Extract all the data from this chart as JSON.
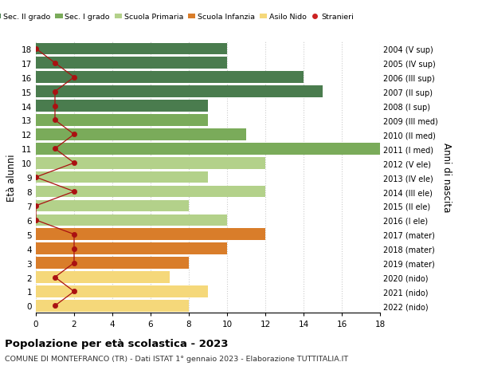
{
  "ages": [
    18,
    17,
    16,
    15,
    14,
    13,
    12,
    11,
    10,
    9,
    8,
    7,
    6,
    5,
    4,
    3,
    2,
    1,
    0
  ],
  "right_labels": [
    "2004 (V sup)",
    "2005 (IV sup)",
    "2006 (III sup)",
    "2007 (II sup)",
    "2008 (I sup)",
    "2009 (III med)",
    "2010 (II med)",
    "2011 (I med)",
    "2012 (V ele)",
    "2013 (IV ele)",
    "2014 (III ele)",
    "2015 (II ele)",
    "2016 (I ele)",
    "2017 (mater)",
    "2018 (mater)",
    "2019 (mater)",
    "2020 (nido)",
    "2021 (nido)",
    "2022 (nido)"
  ],
  "bar_values": [
    10,
    10,
    14,
    15,
    9,
    9,
    11,
    18,
    12,
    9,
    12,
    8,
    10,
    12,
    10,
    8,
    7,
    9,
    8
  ],
  "stranieri": [
    0,
    1,
    2,
    1,
    1,
    1,
    2,
    1,
    2,
    0,
    2,
    0,
    0,
    2,
    2,
    2,
    1,
    2,
    1
  ],
  "bar_colors": [
    "#4a7c4e",
    "#4a7c4e",
    "#4a7c4e",
    "#4a7c4e",
    "#4a7c4e",
    "#7aab5a",
    "#7aab5a",
    "#7aab5a",
    "#b3d18a",
    "#b3d18a",
    "#b3d18a",
    "#b3d18a",
    "#b3d18a",
    "#d97d2a",
    "#d97d2a",
    "#d97d2a",
    "#f5d87a",
    "#f5d87a",
    "#f5d87a"
  ],
  "legend_labels": [
    "Sec. II grado",
    "Sec. I grado",
    "Scuola Primaria",
    "Scuola Infanzia",
    "Asilo Nido",
    "Stranieri"
  ],
  "legend_colors": [
    "#4a7c4e",
    "#7aab5a",
    "#b3d18a",
    "#d97d2a",
    "#f5d87a",
    "#cc2222"
  ],
  "title": "Popolazione per età scolastica - 2023",
  "subtitle": "COMUNE DI MONTEFRANCO (TR) - Dati ISTAT 1° gennaio 2023 - Elaborazione TUTTITALIA.IT",
  "ylabel_left": "Età alunni",
  "ylabel_right": "Anni di nascita",
  "xlim": [
    0,
    18
  ],
  "background_color": "#ffffff",
  "grid_color": "#cccccc",
  "stranieri_color": "#aa1111"
}
